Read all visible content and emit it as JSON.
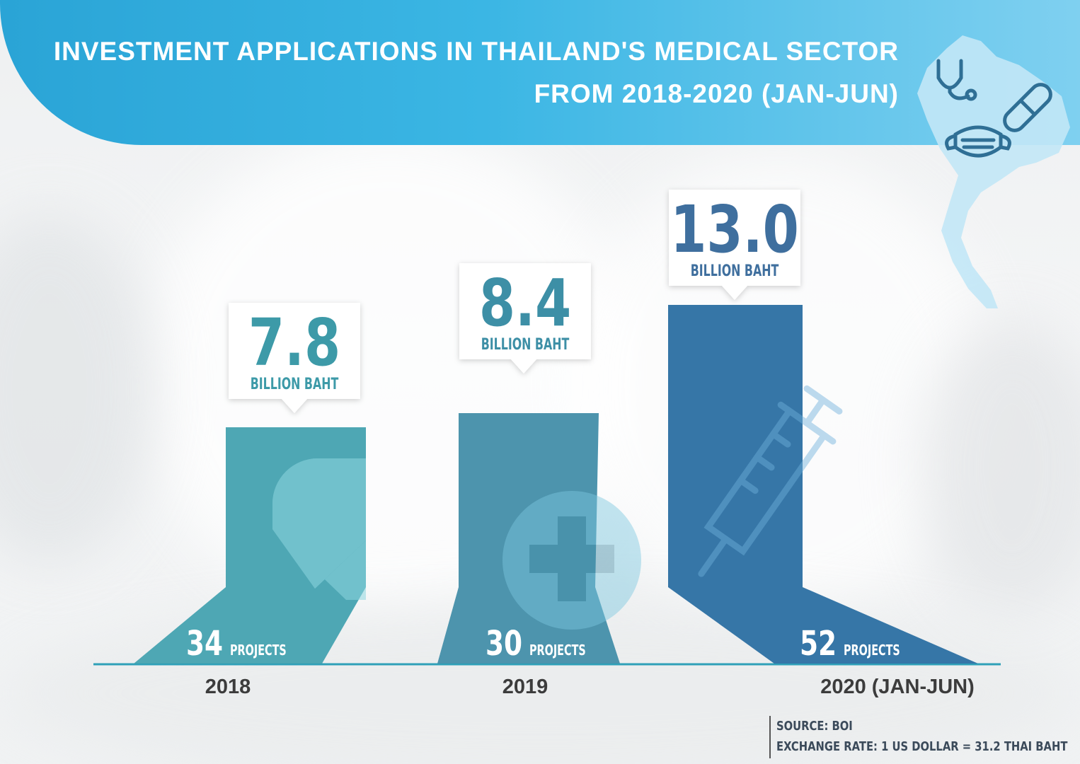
{
  "title": {
    "line1": "INVESTMENT APPLICATIONS IN THAILAND'S MEDICAL SECTOR",
    "line2": "FROM 2018-2020 (JAN-JUN)"
  },
  "chart_data": {
    "type": "bar",
    "title": "INVESTMENT APPLICATIONS IN THAILAND'S MEDICAL SECTOR FROM 2018-2020 (JAN-JUN)",
    "categories": [
      "2018",
      "2019",
      "2020 (JAN-JUN)"
    ],
    "series": [
      {
        "name": "Investment value",
        "unit": "BILLION BAHT",
        "values": [
          7.8,
          8.4,
          13.0
        ]
      },
      {
        "name": "Projects",
        "unit": "PROJECTS",
        "values": [
          34,
          30,
          52
        ]
      }
    ],
    "value_labels": [
      "7.8",
      "8.4",
      "13.0"
    ],
    "unit_label": "BILLION BAHT",
    "project_unit_label": "PROJECTS",
    "bar_colors": [
      "#47a3b1",
      "#4690aa",
      "#2e70a3"
    ],
    "bar_icons": [
      "capsule-icon",
      "medical-cross-icon",
      "syringe-icon"
    ],
    "axis_color": "#2fa0b8",
    "label_color": "#3d9aa8"
  },
  "source": {
    "line1": "SOURCE: BOI",
    "line2": "EXCHANGE RATE: 1 US DOLLAR = 31.2 THAI BAHT"
  },
  "icons": [
    "thailand-map-icon",
    "stethoscope-icon",
    "pill-icon",
    "face-mask-icon"
  ]
}
